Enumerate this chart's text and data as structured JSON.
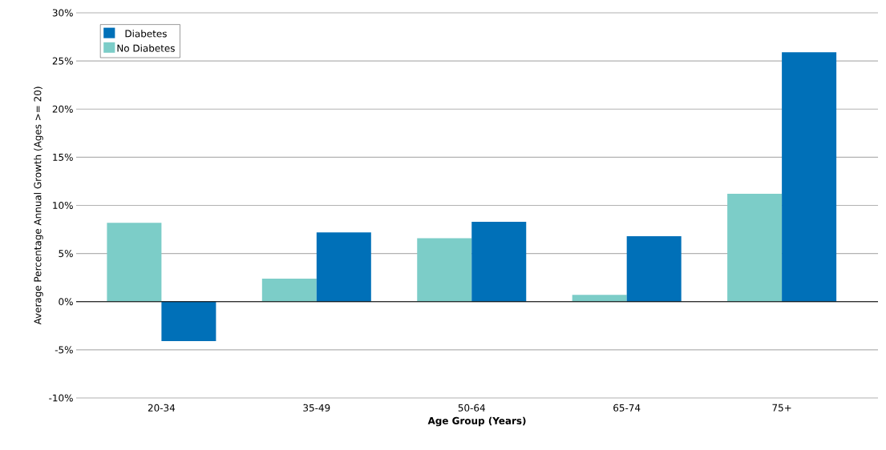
{
  "chart_data": {
    "type": "bar",
    "xlabel": "Age Group (Years)",
    "ylabel": "Average Percentage Annual Growth (Ages >= 20)",
    "categories": [
      "20-34",
      "35-49",
      "50-64",
      "65-74",
      "75+"
    ],
    "series": [
      {
        "name": "No Diabetes",
        "color": "#7ccdc8",
        "values": [
          8.2,
          2.4,
          6.6,
          0.7,
          11.2
        ]
      },
      {
        "name": "Diabetes",
        "color": "#0070b8",
        "values": [
          -4.1,
          7.2,
          8.3,
          6.8,
          25.9
        ]
      }
    ],
    "ylim": [
      -10,
      30
    ],
    "yticks": [
      {
        "value": -10,
        "label": "-10%"
      },
      {
        "value": -5,
        "label": "-5%"
      },
      {
        "value": 0,
        "label": "0%"
      },
      {
        "value": 5,
        "label": "5%"
      },
      {
        "value": 10,
        "label": "10%"
      },
      {
        "value": 15,
        "label": "15%"
      },
      {
        "value": 20,
        "label": "20%"
      },
      {
        "value": 25,
        "label": "25%"
      },
      {
        "value": 30,
        "label": "30%"
      }
    ],
    "grid": "y",
    "legend": "top left"
  }
}
